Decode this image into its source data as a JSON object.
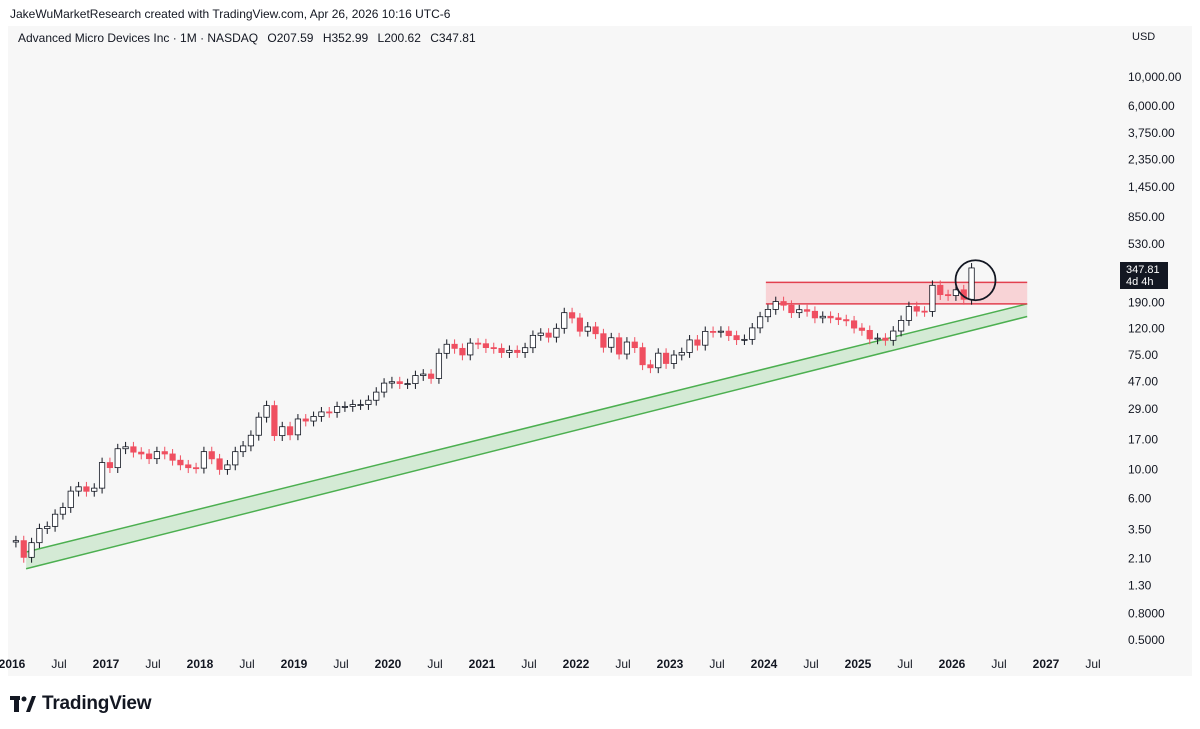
{
  "header": {
    "attribution": "JakeWuMarketResearch created with TradingView.com, Apr 26, 2026 10:16 UTC-6"
  },
  "legend": {
    "symbol": "Advanced Micro Devices Inc · 1M · NASDAQ",
    "open": "O207.59",
    "high": "H352.99",
    "low": "L200.62",
    "close": "C347.81"
  },
  "price_axis": {
    "currency": "USD",
    "last_price": "347.81",
    "countdown": "4d 4h"
  },
  "footer": {
    "brand": "TradingView"
  },
  "colors": {
    "up": "#ffffff",
    "down": "#ef4f60",
    "wick": "#131722",
    "channel_line": "#4caf50",
    "channel_fill": "#c8e6c9",
    "resistance_line": "#e2404f",
    "resistance_fill": "#f8c9cd"
  },
  "chart_data": {
    "type": "candlestick",
    "scale": "log",
    "interval": "1M",
    "y_ticks": [
      {
        "value": 10000,
        "label": "10,000.00"
      },
      {
        "value": 6000,
        "label": "6,000.00"
      },
      {
        "value": 3750,
        "label": "3,750.00"
      },
      {
        "value": 2350,
        "label": "2,350.00"
      },
      {
        "value": 1450,
        "label": "1,450.00"
      },
      {
        "value": 850,
        "label": "850.00"
      },
      {
        "value": 530,
        "label": "530.00"
      },
      {
        "value": 190,
        "label": "190.00"
      },
      {
        "value": 120,
        "label": "120.00"
      },
      {
        "value": 75,
        "label": "75.00"
      },
      {
        "value": 47,
        "label": "47.00"
      },
      {
        "value": 29,
        "label": "29.00"
      },
      {
        "value": 17,
        "label": "17.00"
      },
      {
        "value": 10,
        "label": "10.00"
      },
      {
        "value": 6,
        "label": "6.00"
      },
      {
        "value": 3.5,
        "label": "3.50"
      },
      {
        "value": 2.1,
        "label": "2.10"
      },
      {
        "value": 1.3,
        "label": "1.30"
      },
      {
        "value": 0.8,
        "label": "0.8000"
      },
      {
        "value": 0.5,
        "label": "0.5000"
      }
    ],
    "x_ticks": [
      {
        "t": 2016.0,
        "label": "2016",
        "bold": true
      },
      {
        "t": 2016.5,
        "label": "Jul",
        "bold": false
      },
      {
        "t": 2017.0,
        "label": "2017",
        "bold": true
      },
      {
        "t": 2017.5,
        "label": "Jul",
        "bold": false
      },
      {
        "t": 2018.0,
        "label": "2018",
        "bold": true
      },
      {
        "t": 2018.5,
        "label": "Jul",
        "bold": false
      },
      {
        "t": 2019.0,
        "label": "2019",
        "bold": true
      },
      {
        "t": 2019.5,
        "label": "Jul",
        "bold": false
      },
      {
        "t": 2020.0,
        "label": "2020",
        "bold": true
      },
      {
        "t": 2020.5,
        "label": "Jul",
        "bold": false
      },
      {
        "t": 2021.0,
        "label": "2021",
        "bold": true
      },
      {
        "t": 2021.5,
        "label": "Jul",
        "bold": false
      },
      {
        "t": 2022.0,
        "label": "2022",
        "bold": true
      },
      {
        "t": 2022.5,
        "label": "Jul",
        "bold": false
      },
      {
        "t": 2023.0,
        "label": "2023",
        "bold": true
      },
      {
        "t": 2023.5,
        "label": "Jul",
        "bold": false
      },
      {
        "t": 2024.0,
        "label": "2024",
        "bold": true
      },
      {
        "t": 2024.5,
        "label": "Jul",
        "bold": false
      },
      {
        "t": 2025.0,
        "label": "2025",
        "bold": true
      },
      {
        "t": 2025.5,
        "label": "Jul",
        "bold": false
      },
      {
        "t": 2026.0,
        "label": "2026",
        "bold": true
      },
      {
        "t": 2026.5,
        "label": "Jul",
        "bold": false
      },
      {
        "t": 2027.0,
        "label": "2027",
        "bold": true
      },
      {
        "t": 2027.5,
        "label": "Jul",
        "bold": false
      }
    ],
    "monthly_close": [
      2.87,
      2.14,
      2.77,
      3.55,
      3.69,
      4.57,
      5.14,
      6.86,
      7.4,
      6.84,
      7.23,
      11.34,
      10.37,
      14.46,
      14.96,
      13.62,
      13.19,
      12.14,
      13.74,
      13.19,
      11.81,
      10.89,
      10.36,
      10.28,
      13.74,
      12.11,
      10.05,
      10.88,
      13.73,
      15.2,
      18.33,
      25.17,
      30.89,
      18.21,
      21.3,
      18.46,
      24.41,
      23.53,
      25.52,
      27.63,
      27.41,
      30.37,
      30.45,
      31.45,
      31.45,
      33.93,
      39.15,
      45.86,
      47.0,
      45.48,
      45.48,
      52.39,
      53.8,
      49.8,
      77.43,
      90.82,
      84.51,
      75.29,
      92.66,
      91.71,
      85.64,
      84.51,
      78.5,
      81.62,
      78.55,
      85.51,
      106.21,
      110.55,
      102.9,
      120.23,
      158.37,
      144.14,
      114.25,
      123.34,
      109.34,
      86.16,
      101.86,
      76.47,
      94.47,
      85.63,
      63.36,
      60.06,
      77.63,
      64.77,
      75.15,
      78.58,
      98.04,
      89.37,
      113.91,
      112.28,
      114.4,
      105.72,
      98.5,
      98.98,
      121.16,
      147.41,
      167.69,
      192.53,
      180.49,
      158.38,
      166.9,
      162.21,
      144.48,
      148.56,
      144.5,
      140.11,
      137.18,
      120.79,
      115.95,
      99.86,
      101.22,
      97.35,
      114.63,
      138.21,
      176.31,
      162.63,
      161.79,
      256.12,
      217.5,
      214.16,
      236.73,
      200.21,
      347.81
    ],
    "resistance_zone": {
      "top": 270,
      "bottom": 185,
      "start": 2024.02,
      "end": 2026.8
    },
    "support_channel": {
      "start_t": 2016.15,
      "end_t": 2026.8,
      "upper_start": 2.35,
      "upper_end": 185,
      "lower_start": 1.75,
      "lower_end": 148
    },
    "highlight": {
      "t": 2026.25,
      "price": 280
    }
  }
}
